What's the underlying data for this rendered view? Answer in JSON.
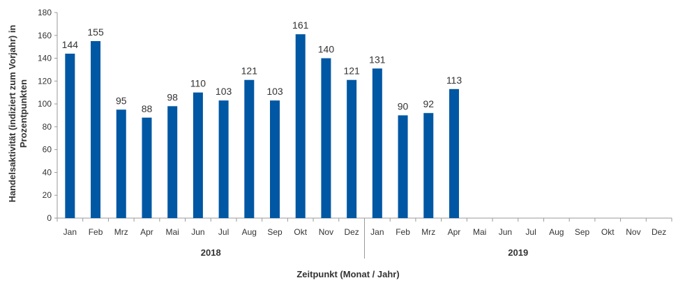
{
  "chart_data": {
    "type": "bar",
    "categories": [
      "Jan",
      "Feb",
      "Mrz",
      "Apr",
      "Mai",
      "Jun",
      "Jul",
      "Aug",
      "Sep",
      "Okt",
      "Nov",
      "Dez",
      "Jan",
      "Feb",
      "Mrz",
      "Apr",
      "Mai",
      "Jun",
      "Jul",
      "Aug",
      "Sep",
      "Okt",
      "Nov",
      "Dez"
    ],
    "values": [
      144,
      155,
      95,
      88,
      98,
      110,
      103,
      121,
      103,
      161,
      140,
      121,
      131,
      90,
      92,
      113,
      null,
      null,
      null,
      null,
      null,
      null,
      null,
      null
    ],
    "groups": [
      {
        "label": "2018",
        "start": 0,
        "end": 11
      },
      {
        "label": "2019",
        "start": 12,
        "end": 23
      }
    ],
    "xlabel": "Zeitpunkt (Monat / Jahr)",
    "ylabel_lines": [
      "Handelsaktivität (indiziert zum Vorjahr) in",
      "Prozentpunkten"
    ],
    "ylim": [
      0,
      180
    ],
    "yticks": [
      0,
      20,
      40,
      60,
      80,
      100,
      120,
      140,
      160,
      180
    ],
    "grid": false,
    "legend": "none",
    "bar_color": "#0057a3",
    "axis_color": "#999999"
  }
}
